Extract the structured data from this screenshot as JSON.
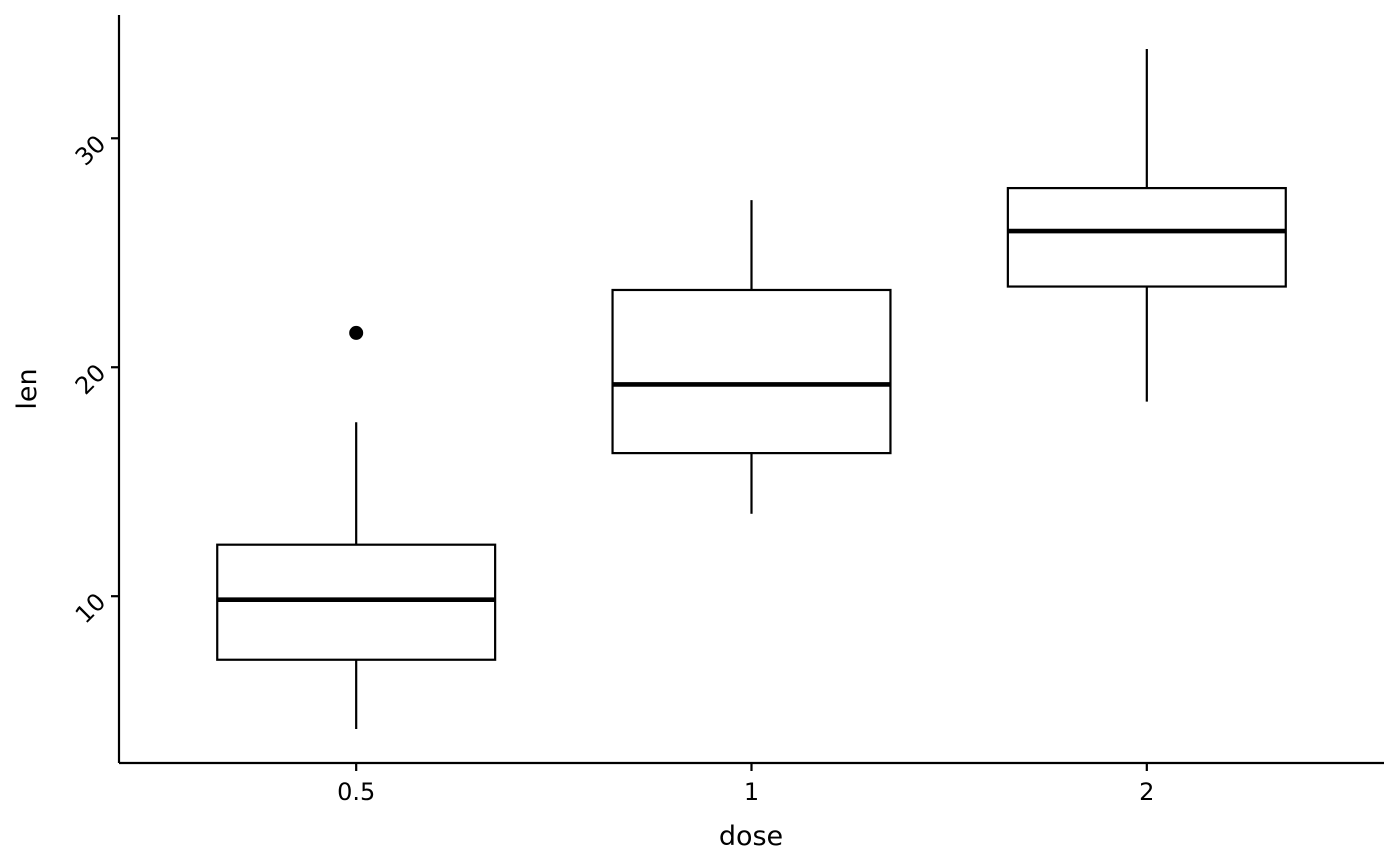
{
  "chart_data": {
    "type": "boxplot",
    "title": "",
    "xlabel": "dose",
    "ylabel": "len",
    "categories": [
      "0.5",
      "1",
      "2"
    ],
    "boxes": [
      {
        "category": "0.5",
        "whisker_low": 4.2,
        "q1": 7.225,
        "median": 9.85,
        "q3": 12.25,
        "whisker_high": 17.6,
        "outliers": [
          21.5
        ]
      },
      {
        "category": "1",
        "whisker_low": 13.6,
        "q1": 16.25,
        "median": 19.25,
        "q3": 23.375,
        "whisker_high": 27.3,
        "outliers": []
      },
      {
        "category": "2",
        "whisker_low": 18.5,
        "q1": 23.525,
        "median": 25.95,
        "q3": 27.825,
        "whisker_high": 33.9,
        "outliers": []
      }
    ],
    "y_ticks": [
      10,
      20,
      30
    ],
    "ylim": [
      2.715,
      35.385
    ],
    "x_positions": [
      1,
      2,
      3
    ],
    "xlim": [
      0.4,
      3.6
    ],
    "box_width_units": 0.703,
    "grid": false,
    "legend": false,
    "y_tick_label_rotation": -45,
    "colors": {
      "stroke": "#000000",
      "box_fill": "#ffffff",
      "background": "#ffffff",
      "text": "#000000"
    }
  }
}
